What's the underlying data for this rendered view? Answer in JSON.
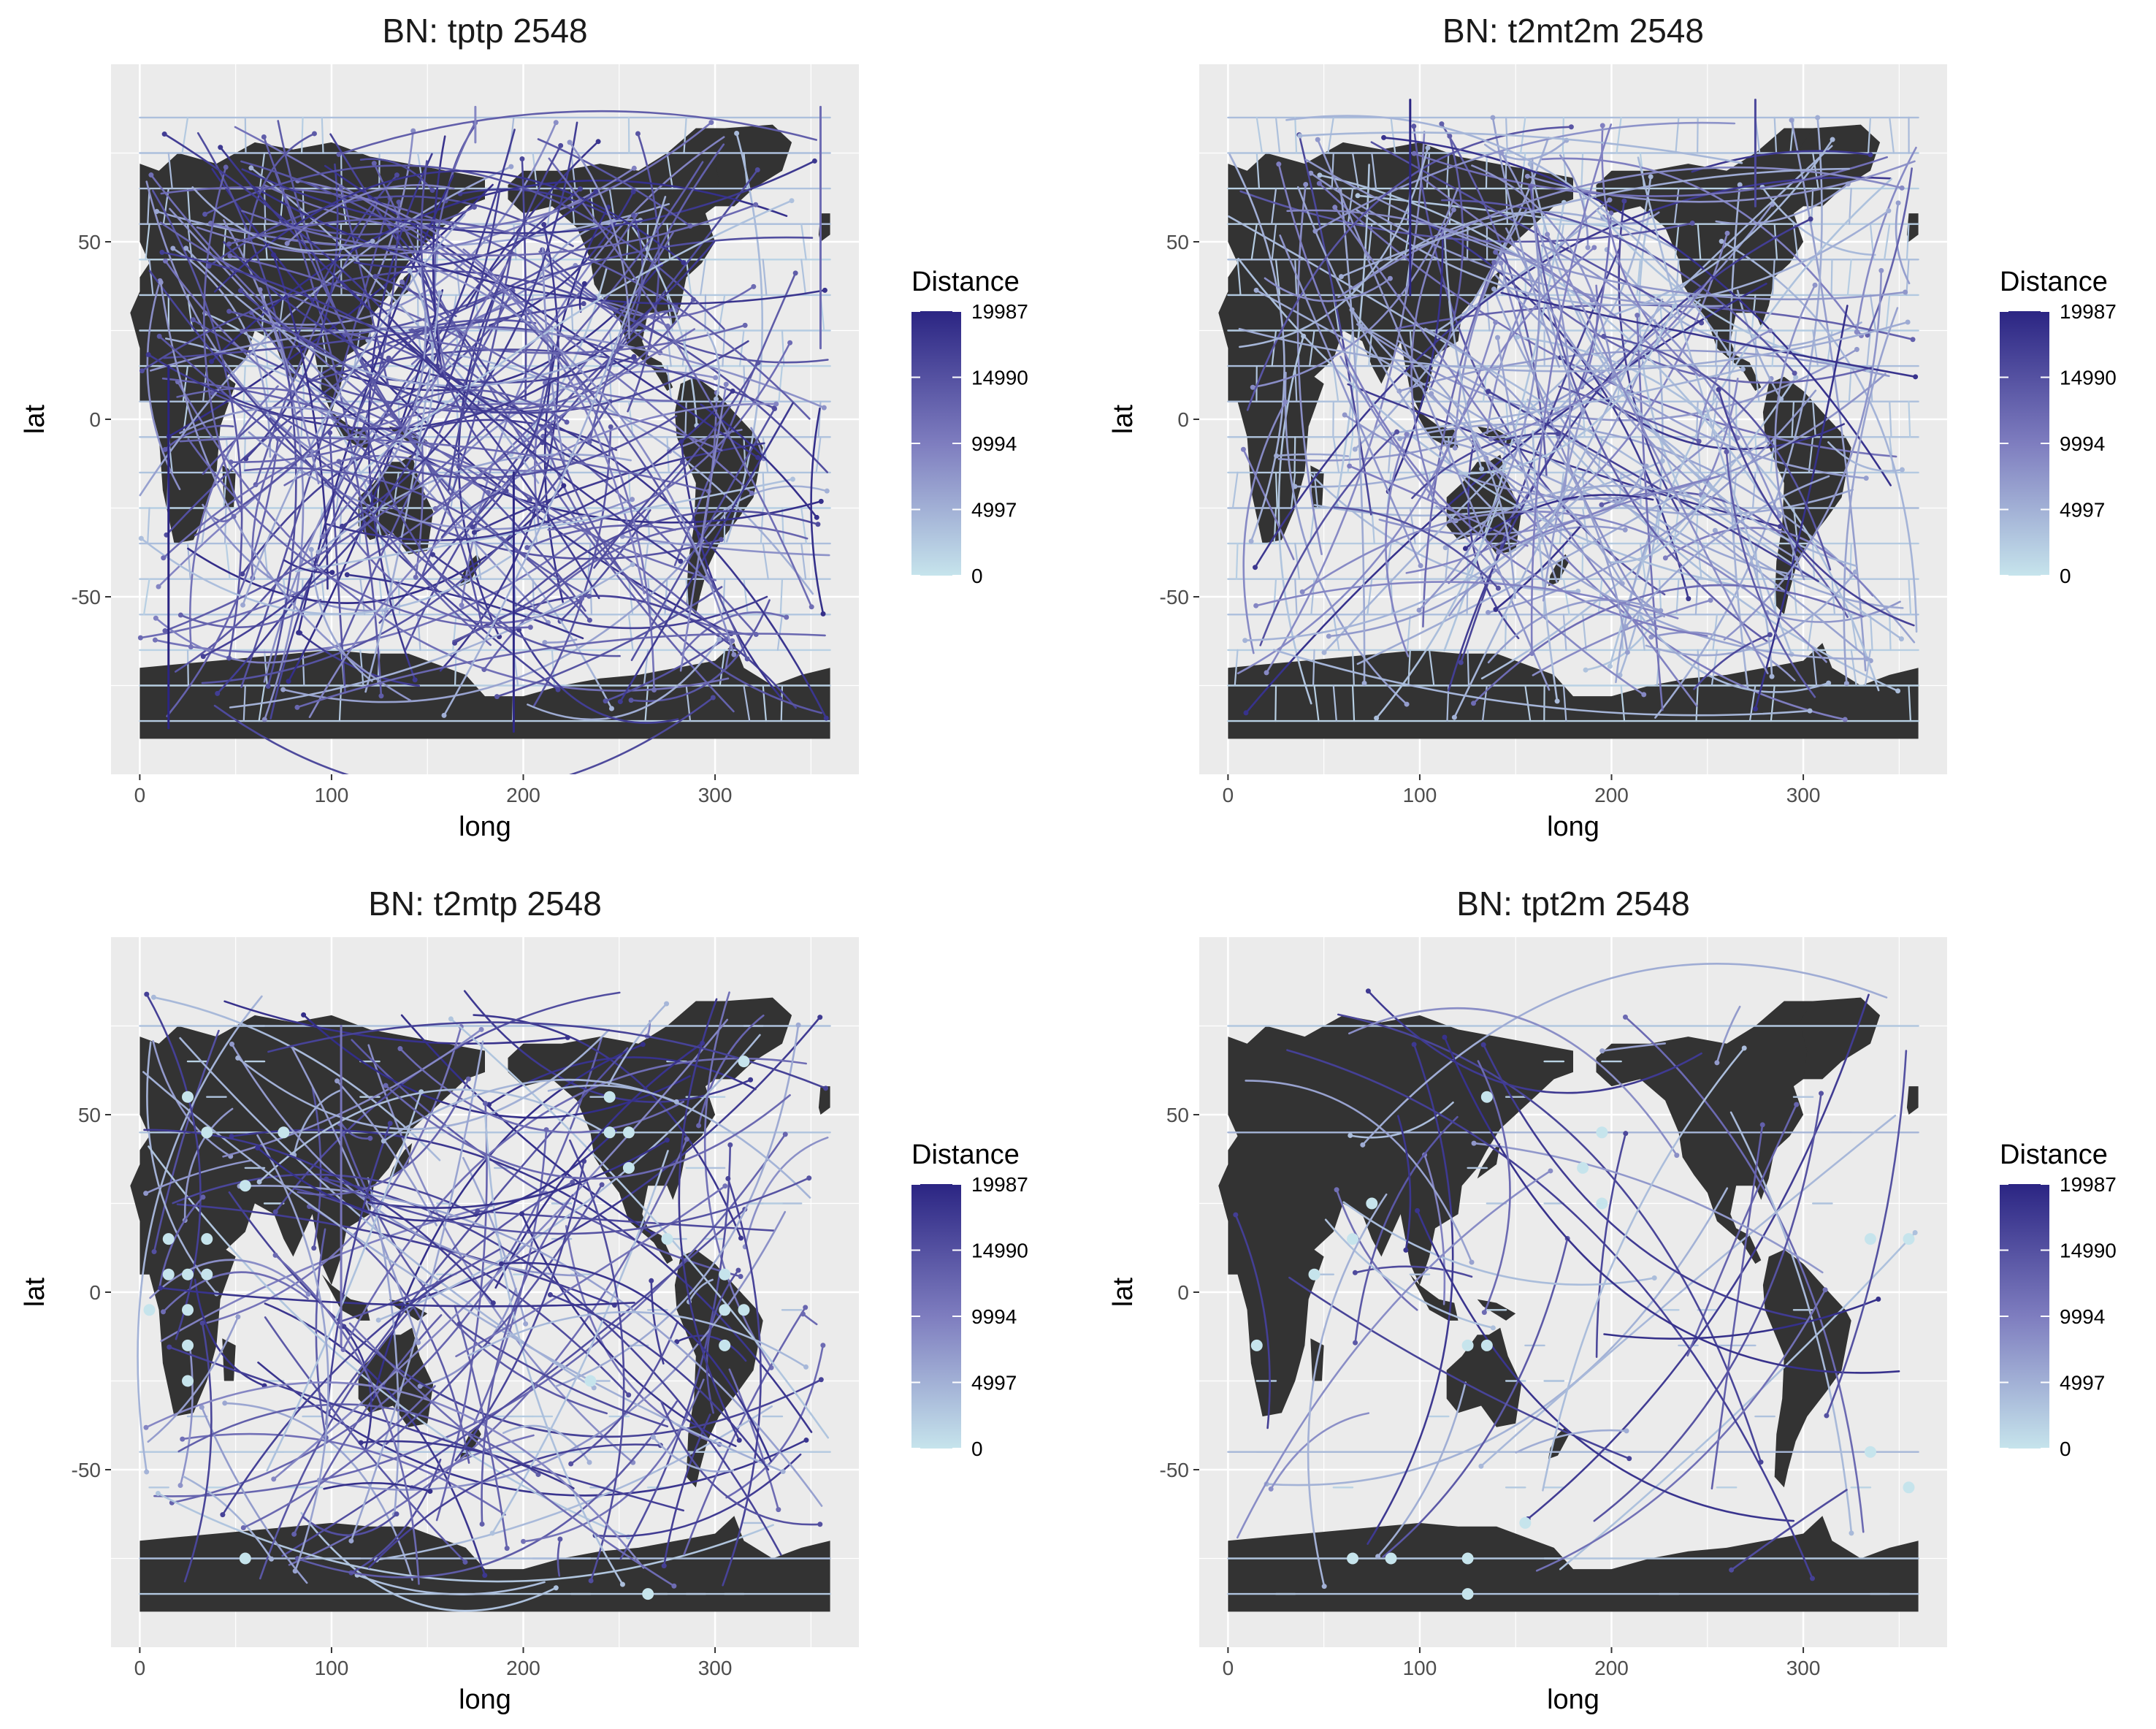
{
  "colors": {
    "panel_bg": "#ebebeb",
    "grid": "#ffffff",
    "land": "#333333",
    "low": "#c6e4ec",
    "high": "#2b2583",
    "axis_text": "#4d4d4d",
    "title_text": "#1a1a1a"
  },
  "chart_data": [
    {
      "type": "map-flow",
      "title": "BN: tptp 2548",
      "xlabel": "long",
      "ylabel": "lat",
      "xlim": [
        -15,
        375
      ],
      "ylim": [
        -100,
        100
      ],
      "x_ticks": [
        0,
        100,
        200,
        300
      ],
      "y_ticks": [
        50,
        0,
        -50
      ],
      "grid": true,
      "legend": {
        "title": "Distance",
        "breaks": [
          19987,
          14990,
          9994,
          4997,
          0
        ],
        "position": "right"
      },
      "density": "high",
      "verticals": [
        {
          "long": 15,
          "lat_start": 15,
          "lat_end": -87,
          "distance": 19987
        },
        {
          "long": 195,
          "lat_start": -15,
          "lat_end": -88,
          "distance": 19500
        },
        {
          "long": 175,
          "lat_start": 88,
          "lat_end": 78,
          "distance": 9000
        },
        {
          "long": 355,
          "lat_start": 88,
          "lat_end": 20,
          "distance": 12000
        }
      ]
    },
    {
      "type": "map-flow",
      "title": "BN: t2mt2m 2548",
      "xlabel": "long",
      "ylabel": "lat",
      "xlim": [
        -15,
        375
      ],
      "ylim": [
        -100,
        100
      ],
      "x_ticks": [
        0,
        100,
        200,
        300
      ],
      "y_ticks": [
        50,
        0,
        -50
      ],
      "grid": true,
      "legend": {
        "title": "Distance",
        "breaks": [
          19987,
          14990,
          9994,
          4997,
          0
        ],
        "position": "right"
      },
      "density": "high-light",
      "verticals": [
        {
          "long": 95,
          "lat_start": 90,
          "lat_end": 35,
          "distance": 19987
        },
        {
          "long": 275,
          "lat_start": 90,
          "lat_end": 60,
          "distance": 16000
        }
      ]
    },
    {
      "type": "map-flow",
      "title": "BN: t2mtp 2548",
      "xlabel": "long",
      "ylabel": "lat",
      "xlim": [
        -15,
        375
      ],
      "ylim": [
        -100,
        100
      ],
      "x_ticks": [
        0,
        100,
        200,
        300
      ],
      "y_ticks": [
        50,
        0,
        -50
      ],
      "grid": true,
      "legend": {
        "title": "Distance",
        "breaks": [
          19987,
          14990,
          9994,
          4997,
          0
        ],
        "position": "right"
      },
      "density": "medium",
      "points": [
        [
          25,
          55
        ],
        [
          35,
          45
        ],
        [
          75,
          45
        ],
        [
          55,
          30
        ],
        [
          15,
          15
        ],
        [
          35,
          15
        ],
        [
          15,
          5
        ],
        [
          25,
          5
        ],
        [
          35,
          5
        ],
        [
          25,
          -5
        ],
        [
          25,
          -15
        ],
        [
          25,
          -25
        ],
        [
          245,
          55
        ],
        [
          245,
          45
        ],
        [
          255,
          45
        ],
        [
          255,
          35
        ],
        [
          305,
          5
        ],
        [
          305,
          -5
        ],
        [
          315,
          -5
        ],
        [
          305,
          -15
        ],
        [
          315,
          65
        ],
        [
          275,
          15
        ],
        [
          235,
          -25
        ],
        [
          55,
          -75
        ],
        [
          265,
          -85
        ],
        [
          5,
          -5
        ]
      ],
      "verticals": [
        {
          "long": 105,
          "lat_start": 75,
          "lat_end": -15,
          "distance": 11000
        }
      ]
    },
    {
      "type": "map-flow",
      "title": "BN: tpt2m 2548",
      "xlabel": "long",
      "ylabel": "lat",
      "xlim": [
        -15,
        375
      ],
      "ylim": [
        -100,
        100
      ],
      "x_ticks": [
        0,
        100,
        200,
        300
      ],
      "y_ticks": [
        50,
        0,
        -50
      ],
      "grid": true,
      "legend": {
        "title": "Distance",
        "breaks": [
          19987,
          14990,
          9994,
          4997,
          0
        ],
        "position": "right"
      },
      "density": "low",
      "points": [
        [
          135,
          55
        ],
        [
          185,
          35
        ],
        [
          195,
          25
        ],
        [
          195,
          45
        ],
        [
          75,
          25
        ],
        [
          65,
          15
        ],
        [
          45,
          5
        ],
        [
          15,
          -15
        ],
        [
          125,
          -15
        ],
        [
          135,
          -15
        ],
        [
          335,
          15
        ],
        [
          355,
          15
        ],
        [
          335,
          -45
        ],
        [
          355,
          -55
        ],
        [
          65,
          -75
        ],
        [
          85,
          -75
        ],
        [
          125,
          -75
        ],
        [
          155,
          -65
        ],
        [
          125,
          -85
        ]
      ],
      "verticals": []
    }
  ]
}
